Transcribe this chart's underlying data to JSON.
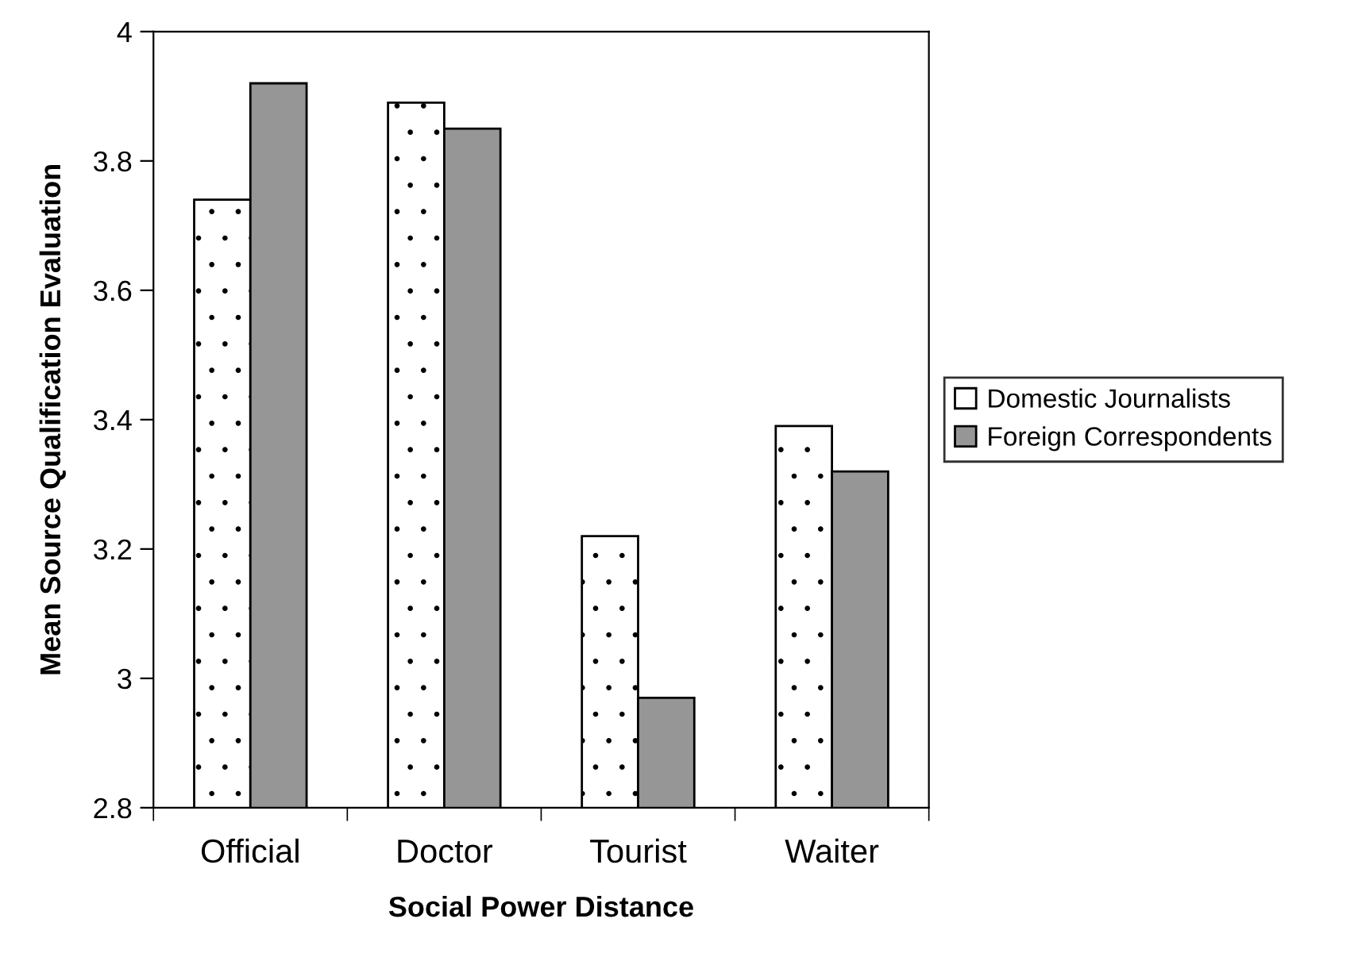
{
  "chart_data": {
    "type": "bar",
    "xlabel": "Social Power Distance",
    "ylabel": "Mean Source Qualification Evaluation",
    "categories": [
      "Official",
      "Doctor",
      "Tourist",
      "Waiter"
    ],
    "series": [
      {
        "name": "Domestic Journalists",
        "color": "#ffffff",
        "values": [
          3.74,
          3.89,
          3.22,
          3.39
        ]
      },
      {
        "name": "Foreign Correspondents",
        "color": "#969696",
        "values": [
          3.92,
          3.85,
          2.97,
          3.32
        ]
      }
    ],
    "ylim": [
      2.8,
      4
    ],
    "yticks": [
      2.8,
      3,
      3.2,
      3.4,
      3.6,
      3.8,
      4
    ],
    "grid": false,
    "legend": "right"
  }
}
